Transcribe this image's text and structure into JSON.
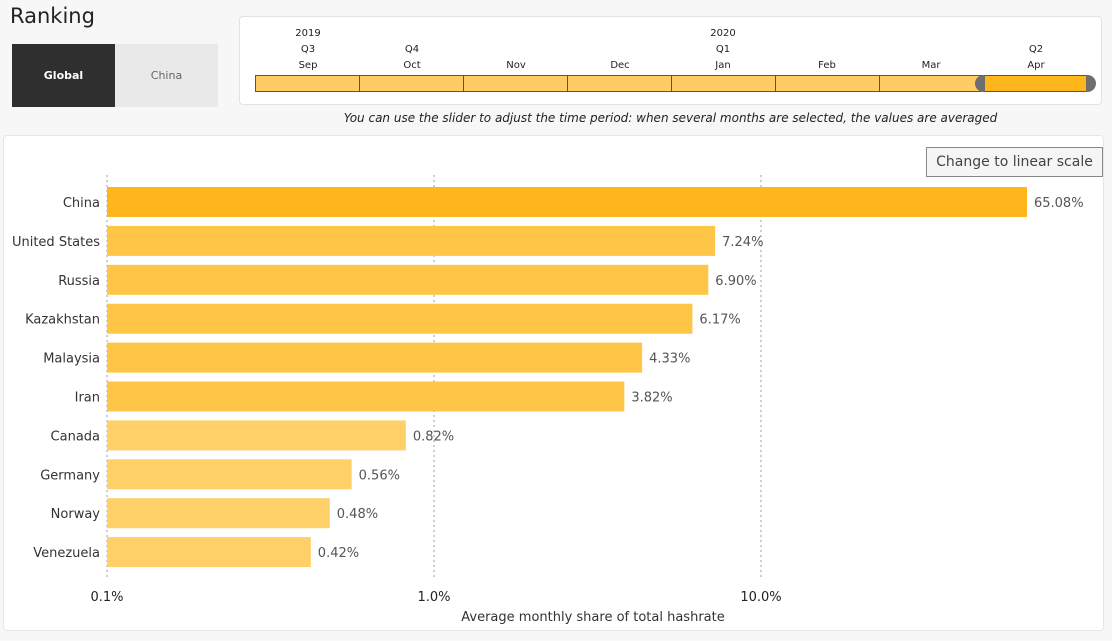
{
  "page": {
    "title": "Ranking"
  },
  "region_toggle": {
    "options": [
      "Global",
      "China"
    ],
    "selected": "Global"
  },
  "timeline": {
    "years": [
      {
        "label": "2019",
        "at_month": "Sep"
      },
      {
        "label": "2020",
        "at_month": "Jan"
      }
    ],
    "quarters": [
      {
        "label": "Q3",
        "at_month": "Sep"
      },
      {
        "label": "Q4",
        "at_month": "Oct"
      },
      {
        "label": "Q1",
        "at_month": "Jan"
      },
      {
        "label": "Q2",
        "at_month": "Apr"
      }
    ],
    "months": [
      "Sep",
      "Oct",
      "Nov",
      "Dec",
      "Jan",
      "Feb",
      "Mar",
      "Apr"
    ],
    "selected_range": [
      "Apr",
      "Apr"
    ],
    "hint": "You can use the slider to adjust the time period: when several months are selected, the values are averaged"
  },
  "scale_button": {
    "label": "Change to linear scale"
  },
  "colors": {
    "bar_top": "#ffb51c",
    "bar_mid": "#ffc547",
    "bar_low": "#ffd068",
    "track": "#ffcb63",
    "track_selected": "#ffb51c"
  },
  "chart_data": {
    "type": "bar",
    "orientation": "horizontal",
    "categories": [
      "China",
      "United States",
      "Russia",
      "Kazakhstan",
      "Malaysia",
      "Iran",
      "Canada",
      "Germany",
      "Norway",
      "Venezuela"
    ],
    "values": [
      65.08,
      7.24,
      6.9,
      6.17,
      4.33,
      3.82,
      0.82,
      0.56,
      0.48,
      0.42
    ],
    "value_labels": [
      "65.08%",
      "7.24%",
      "6.90%",
      "6.17%",
      "4.33%",
      "3.82%",
      "0.82%",
      "0.56%",
      "0.48%",
      "0.42%"
    ],
    "unit": "%",
    "xlabel": "Average monthly share of total hashrate",
    "xscale": "log",
    "xlim": [
      0.1,
      100
    ],
    "xticks": [
      {
        "value": 0.1,
        "label": "0.1%"
      },
      {
        "value": 1,
        "label": "1.0%"
      },
      {
        "value": 10,
        "label": "10.0%"
      }
    ],
    "grid": "vertical dotted"
  }
}
